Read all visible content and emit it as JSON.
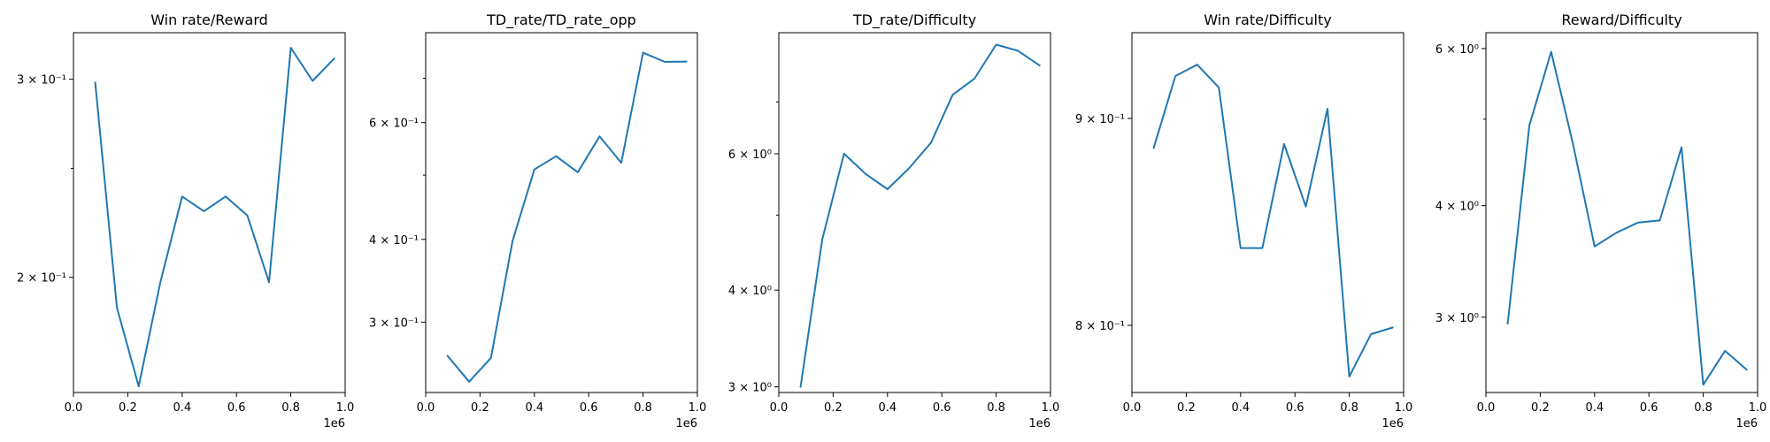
{
  "line_color": "#1f77b4",
  "x_offset_label": "1e6",
  "x_tick_labels": [
    "0.0",
    "0.2",
    "0.4",
    "0.6",
    "0.8",
    "1.0"
  ],
  "chart_data": [
    {
      "type": "line",
      "title": "Win rate/Reward",
      "y_scale": "log",
      "x_multiplier": 1000000,
      "xlim": [
        0,
        1.0
      ],
      "ylim": [
        0.158,
        0.33
      ],
      "x": [
        0.08,
        0.16,
        0.24,
        0.32,
        0.4,
        0.48,
        0.56,
        0.64,
        0.72,
        0.8,
        0.88,
        0.96
      ],
      "y": [
        0.298,
        0.188,
        0.16,
        0.198,
        0.236,
        0.229,
        0.236,
        0.227,
        0.198,
        0.32,
        0.299,
        0.313
      ],
      "y_ticks": [
        {
          "value": 0.2,
          "label": "2 × 10⁻¹"
        },
        {
          "value": 0.3,
          "label": "3 × 10⁻¹"
        }
      ],
      "y_minor_ticks": [
        0.25
      ]
    },
    {
      "type": "line",
      "title": "TD_rate/TD_rate_opp",
      "y_scale": "log",
      "x_multiplier": 1000000,
      "xlim": [
        0,
        1.0
      ],
      "ylim": [
        0.235,
        0.82
      ],
      "x": [
        0.08,
        0.16,
        0.24,
        0.32,
        0.4,
        0.48,
        0.56,
        0.64,
        0.72,
        0.8,
        0.88,
        0.96
      ],
      "y": [
        0.267,
        0.244,
        0.265,
        0.398,
        0.51,
        0.534,
        0.505,
        0.572,
        0.522,
        0.765,
        0.741,
        0.742
      ],
      "y_ticks": [
        {
          "value": 0.3,
          "label": "3 × 10⁻¹"
        },
        {
          "value": 0.4,
          "label": "4 × 10⁻¹"
        },
        {
          "value": 0.6,
          "label": "6 × 10⁻¹"
        }
      ],
      "y_minor_ticks": [
        0.5,
        0.7
      ]
    },
    {
      "type": "line",
      "title": "TD_rate/Difficulty",
      "y_scale": "log",
      "x_multiplier": 1000000,
      "xlim": [
        0,
        1.0
      ],
      "ylim": [
        2.95,
        8.6
      ],
      "x": [
        0.08,
        0.16,
        0.24,
        0.32,
        0.4,
        0.48,
        0.56,
        0.64,
        0.72,
        0.8,
        0.88,
        0.96
      ],
      "y": [
        3.0,
        4.65,
        6.0,
        5.65,
        5.4,
        5.75,
        6.2,
        7.15,
        7.5,
        8.3,
        8.15,
        7.8
      ],
      "y_ticks": [
        {
          "value": 3,
          "label": "3 × 10⁰"
        },
        {
          "value": 4,
          "label": "4 × 10⁰"
        },
        {
          "value": 6,
          "label": "6 × 10⁰"
        }
      ],
      "y_minor_ticks": [
        5,
        7
      ]
    },
    {
      "type": "line",
      "title": "Win rate/Difficulty",
      "y_scale": "log",
      "x_multiplier": 1000000,
      "xlim": [
        0,
        1.0
      ],
      "ylim": [
        0.77,
        0.945
      ],
      "x": [
        0.08,
        0.16,
        0.24,
        0.32,
        0.4,
        0.48,
        0.56,
        0.64,
        0.72,
        0.8,
        0.88,
        0.96
      ],
      "y": [
        0.885,
        0.922,
        0.928,
        0.916,
        0.836,
        0.836,
        0.887,
        0.856,
        0.905,
        0.777,
        0.796,
        0.799
      ],
      "y_ticks": [
        {
          "value": 0.8,
          "label": "8 × 10⁻¹"
        },
        {
          "value": 0.9,
          "label": "9 × 10⁻¹"
        }
      ],
      "y_minor_ticks": []
    },
    {
      "type": "line",
      "title": "Reward/Difficulty",
      "y_scale": "log",
      "x_multiplier": 1000000,
      "xlim": [
        0,
        1.0
      ],
      "ylim": [
        2.47,
        6.25
      ],
      "x": [
        0.08,
        0.16,
        0.24,
        0.32,
        0.4,
        0.48,
        0.56,
        0.64,
        0.72,
        0.8,
        0.88,
        0.96
      ],
      "y": [
        2.95,
        4.92,
        5.95,
        4.7,
        3.6,
        3.73,
        3.83,
        3.85,
        4.65,
        2.52,
        2.75,
        2.62
      ],
      "y_ticks": [
        {
          "value": 3,
          "label": "3 × 10⁰"
        },
        {
          "value": 4,
          "label": "4 × 10⁰"
        },
        {
          "value": 6,
          "label": "6 × 10⁰"
        }
      ],
      "y_minor_ticks": [
        5
      ]
    }
  ]
}
